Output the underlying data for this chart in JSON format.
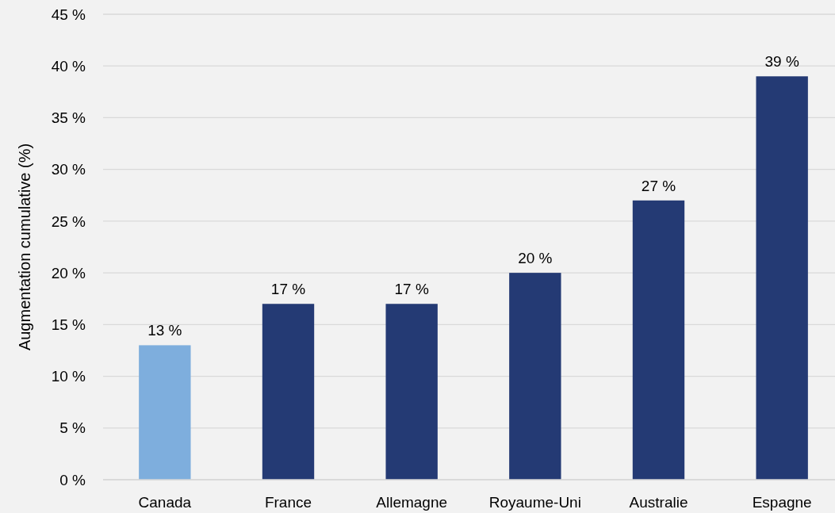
{
  "chart_data": {
    "type": "bar",
    "ylabel": "Augmentation cumulative (%)",
    "categories": [
      "Canada",
      "France",
      "Allemagne",
      "Royaume-Uni",
      "Australie",
      "Espagne"
    ],
    "values": [
      13,
      17,
      17,
      20,
      27,
      39
    ],
    "colors": [
      "#7eaedd",
      "#243a74",
      "#243a74",
      "#243a74",
      "#243a74",
      "#243a74"
    ],
    "value_labels": [
      "13 %",
      "17 %",
      "17 %",
      "20 %",
      "27 %",
      "39 %"
    ],
    "ylim": [
      0,
      45
    ],
    "yticks": [
      {
        "value": 0,
        "label": "0 %"
      },
      {
        "value": 5,
        "label": "5 %"
      },
      {
        "value": 10,
        "label": "10 %"
      },
      {
        "value": 15,
        "label": "15 %"
      },
      {
        "value": 20,
        "label": "20 %"
      },
      {
        "value": 25,
        "label": "25 %"
      },
      {
        "value": 30,
        "label": "30 %"
      },
      {
        "value": 35,
        "label": "35 %"
      },
      {
        "value": 40,
        "label": "40 %"
      },
      {
        "value": 45,
        "label": "45 %"
      }
    ],
    "grid": "y"
  }
}
